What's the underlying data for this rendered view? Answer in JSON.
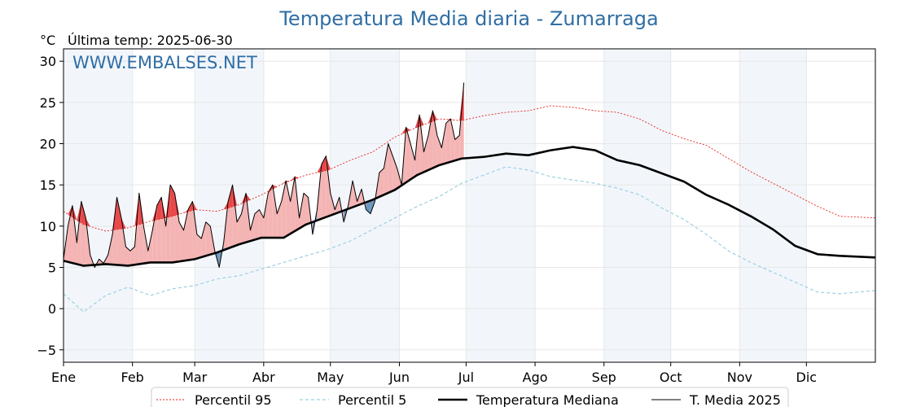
{
  "chart_data": {
    "type": "line",
    "title": "Temperatura Media diaria - Zumarraga",
    "unit_label": "°C",
    "subtitle": "Última temp: 2025-06-30",
    "watermark": "WWW.EMBALSES.NET",
    "xlabel": "",
    "ylabel": "",
    "ylim": [
      -6.5,
      31.5
    ],
    "xlim": [
      1,
      366
    ],
    "y_ticks": [
      -5,
      0,
      5,
      10,
      15,
      20,
      25,
      30
    ],
    "y_tick_labels": [
      "−5",
      "0",
      "5",
      "10",
      "15",
      "20",
      "25",
      "30"
    ],
    "month_ticks": [
      {
        "day": 1,
        "label": "Ene"
      },
      {
        "day": 32,
        "label": "Feb"
      },
      {
        "day": 60,
        "label": "Mar"
      },
      {
        "day": 91,
        "label": "Abr"
      },
      {
        "day": 121,
        "label": "May"
      },
      {
        "day": 152,
        "label": "Jun"
      },
      {
        "day": 182,
        "label": "Jul"
      },
      {
        "day": 213,
        "label": "Ago"
      },
      {
        "day": 244,
        "label": "Sep"
      },
      {
        "day": 274,
        "label": "Oct"
      },
      {
        "day": 305,
        "label": "Nov"
      },
      {
        "day": 335,
        "label": "Dic"
      }
    ],
    "shaded_month_bands": [
      [
        1,
        32
      ],
      [
        60,
        91
      ],
      [
        121,
        152
      ],
      [
        182,
        213
      ],
      [
        244,
        274
      ],
      [
        305,
        335
      ]
    ],
    "grid": true,
    "legend_position": "bottom",
    "colors": {
      "p95": "#e32119",
      "p5": "#9ccfe3",
      "median": "#000000",
      "current": "#000000",
      "above_fill": "#f4b4b4",
      "above_peak_fill": "#e8484a",
      "below_fill": "#6b98be",
      "band": "#f2f6fb",
      "title": "#2f6ea5"
    },
    "series": [
      {
        "name": "Percentil 95",
        "style": "dotted",
        "x": [
          1,
          10,
          20,
          30,
          40,
          50,
          60,
          70,
          80,
          90,
          100,
          110,
          120,
          130,
          140,
          150,
          160,
          170,
          180,
          190,
          200,
          210,
          220,
          230,
          240,
          250,
          260,
          270,
          280,
          290,
          300,
          310,
          320,
          330,
          340,
          350,
          366
        ],
        "values": [
          11.8,
          10.2,
          9.4,
          9.8,
          10.6,
          11.2,
          12.0,
          11.8,
          12.6,
          13.8,
          15.2,
          16.2,
          16.8,
          18.0,
          19.0,
          20.8,
          22.0,
          23.0,
          22.8,
          23.4,
          23.8,
          24.0,
          24.6,
          24.4,
          24.0,
          23.8,
          23.0,
          21.6,
          20.6,
          19.8,
          18.2,
          16.6,
          15.2,
          13.8,
          12.4,
          11.2,
          11.0
        ]
      },
      {
        "name": "Percentil 5",
        "style": "dashed",
        "x": [
          1,
          10,
          20,
          30,
          40,
          50,
          60,
          70,
          80,
          90,
          100,
          110,
          120,
          130,
          140,
          150,
          160,
          170,
          180,
          190,
          200,
          210,
          220,
          230,
          240,
          250,
          260,
          270,
          280,
          290,
          300,
          310,
          320,
          330,
          340,
          350,
          366
        ],
        "values": [
          1.8,
          -0.4,
          1.6,
          2.6,
          1.6,
          2.4,
          2.8,
          3.6,
          4.0,
          4.8,
          5.6,
          6.4,
          7.2,
          8.2,
          9.6,
          11.0,
          12.4,
          13.6,
          15.2,
          16.2,
          17.2,
          16.8,
          16.0,
          15.6,
          15.2,
          14.6,
          13.8,
          12.2,
          10.8,
          9.0,
          7.0,
          5.6,
          4.4,
          3.2,
          2.0,
          1.8,
          2.2
        ]
      },
      {
        "name": "Temperatura Mediana",
        "style": "solid-thick",
        "x": [
          1,
          10,
          20,
          30,
          40,
          50,
          60,
          70,
          80,
          90,
          100,
          110,
          120,
          130,
          140,
          150,
          160,
          170,
          180,
          190,
          200,
          210,
          220,
          230,
          240,
          250,
          260,
          270,
          280,
          290,
          300,
          310,
          320,
          330,
          340,
          350,
          366
        ],
        "values": [
          5.8,
          5.2,
          5.4,
          5.2,
          5.6,
          5.6,
          6.0,
          6.8,
          7.8,
          8.6,
          8.6,
          10.2,
          11.2,
          12.2,
          13.2,
          14.4,
          16.2,
          17.4,
          18.2,
          18.4,
          18.8,
          18.6,
          19.2,
          19.6,
          19.2,
          18.0,
          17.4,
          16.4,
          15.4,
          13.8,
          12.6,
          11.2,
          9.6,
          7.6,
          6.6,
          6.4,
          6.2
        ]
      },
      {
        "name": "T. Media 2025",
        "style": "solid-thin",
        "x": [
          1,
          3,
          5,
          7,
          9,
          11,
          13,
          15,
          17,
          19,
          21,
          23,
          25,
          27,
          29,
          31,
          33,
          35,
          37,
          39,
          41,
          43,
          45,
          47,
          49,
          51,
          53,
          55,
          57,
          59,
          61,
          63,
          65,
          67,
          69,
          71,
          73,
          75,
          77,
          79,
          81,
          83,
          85,
          87,
          89,
          91,
          93,
          95,
          97,
          99,
          101,
          103,
          105,
          107,
          109,
          111,
          113,
          115,
          117,
          119,
          121,
          123,
          125,
          127,
          129,
          131,
          133,
          135,
          137,
          139,
          141,
          143,
          145,
          147,
          149,
          151,
          153,
          155,
          157,
          159,
          161,
          163,
          165,
          167,
          169,
          171,
          173,
          175,
          177,
          179,
          181
        ],
        "values": [
          6.0,
          10.0,
          12.5,
          8.0,
          13.0,
          11.0,
          6.5,
          5.0,
          6.0,
          5.5,
          6.5,
          9.0,
          13.5,
          11.0,
          7.5,
          7.0,
          7.5,
          14.0,
          10.0,
          7.0,
          9.5,
          12.5,
          13.5,
          10.0,
          15.0,
          14.0,
          10.5,
          9.5,
          12.0,
          13.0,
          9.0,
          8.5,
          10.5,
          10.0,
          7.0,
          5.0,
          8.0,
          13.0,
          15.0,
          10.5,
          11.5,
          14.0,
          9.5,
          11.5,
          12.0,
          11.0,
          14.0,
          15.0,
          11.5,
          13.0,
          15.5,
          13.0,
          16.0,
          11.0,
          14.0,
          13.5,
          9.0,
          12.0,
          17.5,
          18.5,
          14.0,
          12.0,
          13.5,
          10.5,
          12.5,
          15.5,
          13.0,
          14.5,
          12.0,
          11.5,
          13.0,
          16.5,
          17.0,
          20.0,
          18.5,
          17.0,
          15.0,
          22.0,
          20.0,
          18.0,
          23.5,
          19.0,
          21.0,
          24.0,
          21.0,
          19.5,
          22.5,
          23.0,
          20.5,
          21.0,
          27.4
        ]
      }
    ],
    "legend": [
      {
        "label": "Percentil 95",
        "style": "dotted"
      },
      {
        "label": "Percentil 5",
        "style": "dashed"
      },
      {
        "label": "Temperatura Mediana",
        "style": "solid-thick"
      },
      {
        "label": "T. Media 2025",
        "style": "solid-thin"
      }
    ]
  }
}
